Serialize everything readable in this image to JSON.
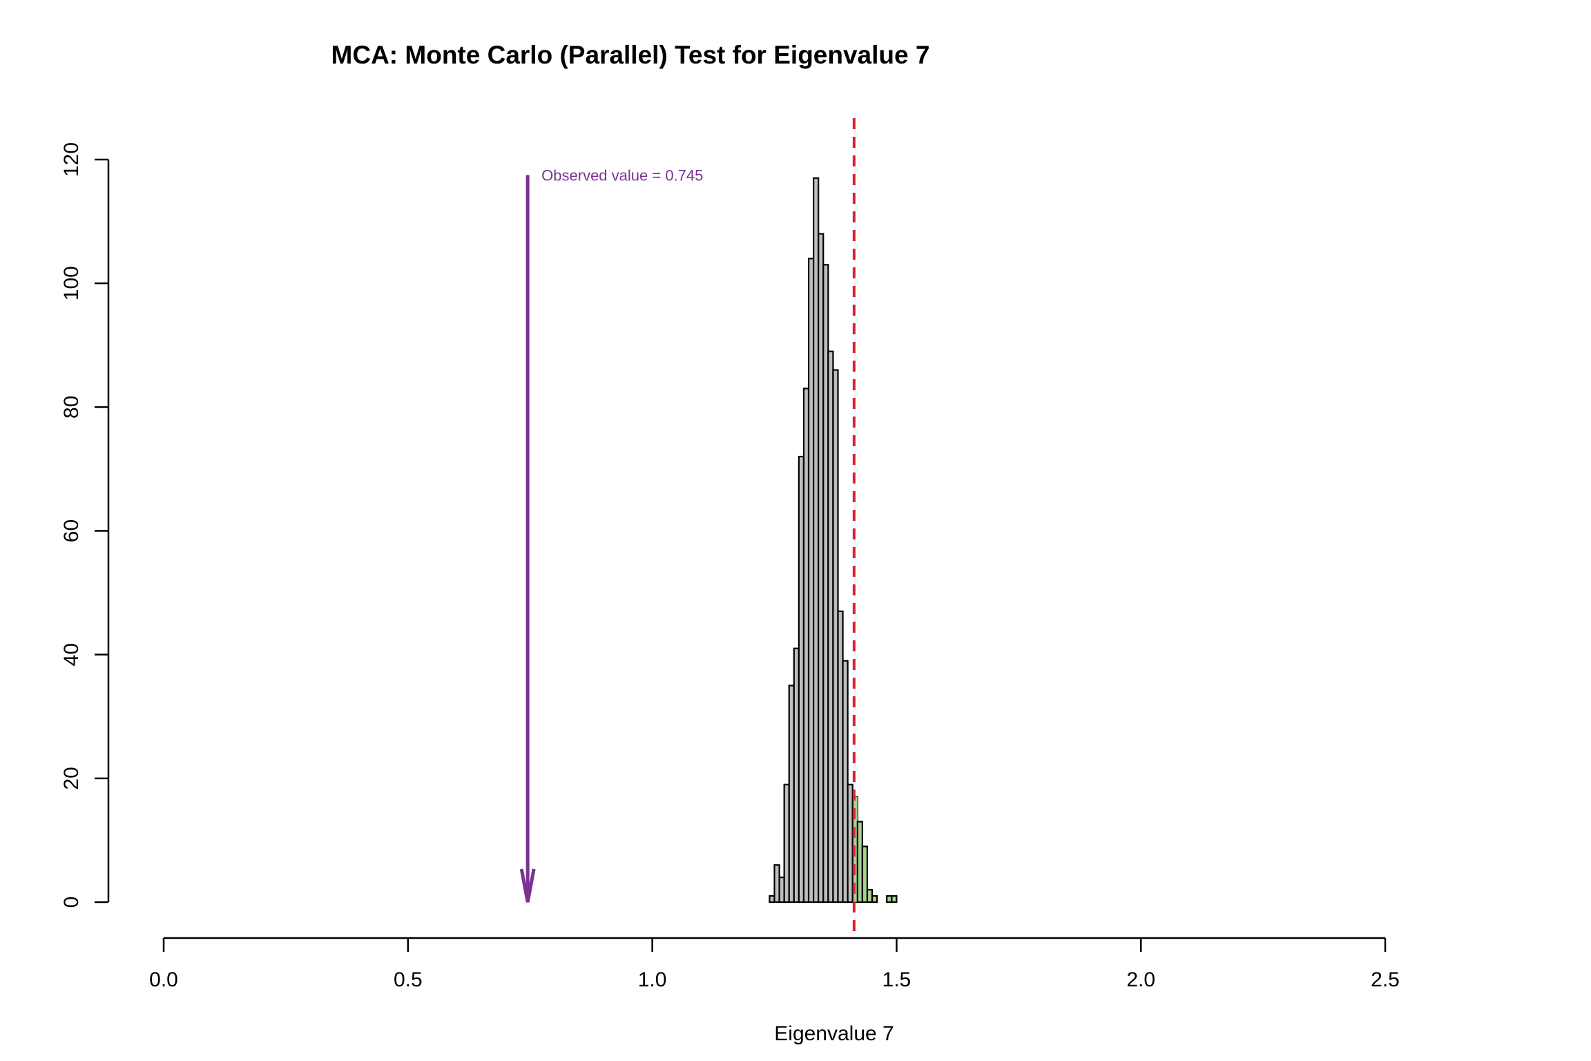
{
  "chart_data": {
    "type": "histogram",
    "title": "MCA: Monte Carlo (Parallel) Test for Eigenvalue 7",
    "xlabel": "Eigenvalue 7",
    "ylabel": "",
    "xlim": [
      0,
      2.5
    ],
    "ylim": [
      0,
      120
    ],
    "x_ticks": [
      "0.0",
      "0.5",
      "1.0",
      "1.5",
      "2.0",
      "2.5"
    ],
    "y_ticks": [
      "0",
      "20",
      "40",
      "60",
      "80",
      "100",
      "120"
    ],
    "bin_width": 0.01,
    "bins": [
      {
        "x0": 1.24,
        "count": 1
      },
      {
        "x0": 1.25,
        "count": 6
      },
      {
        "x0": 1.26,
        "count": 4
      },
      {
        "x0": 1.27,
        "count": 19
      },
      {
        "x0": 1.28,
        "count": 35
      },
      {
        "x0": 1.29,
        "count": 41
      },
      {
        "x0": 1.3,
        "count": 72
      },
      {
        "x0": 1.31,
        "count": 83
      },
      {
        "x0": 1.32,
        "count": 104
      },
      {
        "x0": 1.33,
        "count": 117
      },
      {
        "x0": 1.34,
        "count": 108
      },
      {
        "x0": 1.35,
        "count": 103
      },
      {
        "x0": 1.36,
        "count": 89
      },
      {
        "x0": 1.37,
        "count": 86
      },
      {
        "x0": 1.38,
        "count": 47
      },
      {
        "x0": 1.39,
        "count": 39
      },
      {
        "x0": 1.4,
        "count": 19
      },
      {
        "x0": 1.41,
        "count": 17
      },
      {
        "x0": 1.42,
        "count": 13
      },
      {
        "x0": 1.43,
        "count": 9
      },
      {
        "x0": 1.44,
        "count": 2
      },
      {
        "x0": 1.45,
        "count": 1
      },
      {
        "x0": 1.46,
        "count": 0
      },
      {
        "x0": 1.47,
        "count": 0
      },
      {
        "x0": 1.48,
        "count": 1
      },
      {
        "x0": 1.49,
        "count": 1
      }
    ],
    "critical_value": 1.413,
    "critical_line": {
      "color": "#e0202a",
      "style": "dashed"
    },
    "observed": {
      "value": 0.745,
      "label": "Observed value = 0.745",
      "color": "#7b3294"
    },
    "colors": {
      "bar_fill": "#bebebe",
      "bar_fill_above_critical": "#a9d18e",
      "bar_stroke": "#000000"
    }
  }
}
